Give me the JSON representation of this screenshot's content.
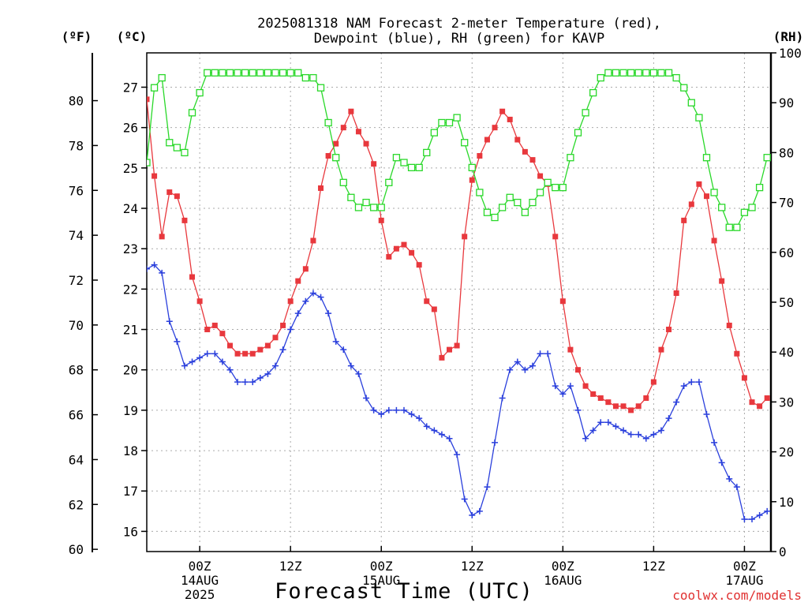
{
  "chart_data": {
    "type": "line",
    "title": [
      "2025081318 NAM Forecast 2-meter Temperature (red),",
      "Dewpoint (blue), RH (green) for KAVP"
    ],
    "xlabel": "Forecast Time (UTC)",
    "credit": "coolwx.com/models",
    "unit_labels": {
      "fahrenheit": "(ºF)",
      "celsius": "(ºC)",
      "rh": "(RH)"
    },
    "x_unit": "forecast hour from 2025081318",
    "xlim": [
      -1,
      81.5
    ],
    "ylim_c": [
      15.5,
      27.85
    ],
    "ylim_rh": [
      0,
      100
    ],
    "grid": true,
    "x_ticks": [
      {
        "x": 6,
        "lines": [
          "00Z",
          "14AUG",
          "2025"
        ]
      },
      {
        "x": 18,
        "lines": [
          "12Z"
        ]
      },
      {
        "x": 30,
        "lines": [
          "00Z",
          "15AUG"
        ]
      },
      {
        "x": 42,
        "lines": [
          "12Z"
        ]
      },
      {
        "x": 54,
        "lines": [
          "00Z",
          "16AUG"
        ]
      },
      {
        "x": 66,
        "lines": [
          "12Z"
        ]
      },
      {
        "x": 78,
        "lines": [
          "00Z",
          "17AUG"
        ]
      }
    ],
    "y_ticks_c": [
      "16",
      "17",
      "18",
      "19",
      "20",
      "21",
      "22",
      "23",
      "24",
      "25",
      "26",
      "27"
    ],
    "y_ticks_f": [
      "60",
      "62",
      "64",
      "66",
      "68",
      "70",
      "72",
      "74",
      "76",
      "78",
      "80"
    ],
    "y_ticks_rh": [
      "0",
      "10",
      "20",
      "30",
      "40",
      "50",
      "60",
      "70",
      "80",
      "90",
      "100"
    ],
    "series": [
      {
        "name": "Temperature",
        "color": "#e8383d",
        "marker": "filled-square",
        "axis": "celsius",
        "x": [
          -1,
          0,
          1,
          2,
          3,
          4,
          5,
          6,
          7,
          8,
          9,
          10,
          11,
          12,
          13,
          14,
          15,
          16,
          17,
          18,
          19,
          20,
          21,
          22,
          23,
          24,
          25,
          26,
          27,
          28,
          29,
          30,
          31,
          32,
          33,
          34,
          35,
          36,
          37,
          38,
          39,
          40,
          41,
          42,
          43,
          44,
          45,
          46,
          47,
          48,
          49,
          50,
          51,
          52,
          53,
          54,
          55,
          56,
          57,
          58,
          59,
          60,
          61,
          62,
          63,
          64,
          65,
          66,
          67,
          68,
          69,
          70,
          71,
          72,
          73,
          74,
          75,
          76,
          77,
          78,
          79,
          80,
          81
        ],
        "values": [
          26.7,
          24.8,
          23.3,
          24.4,
          24.3,
          23.7,
          22.3,
          21.7,
          21.0,
          21.1,
          20.9,
          20.6,
          20.4,
          20.4,
          20.4,
          20.5,
          20.6,
          20.8,
          21.1,
          21.7,
          22.2,
          22.5,
          23.2,
          24.5,
          25.3,
          25.6,
          26.0,
          26.4,
          25.9,
          25.6,
          25.1,
          23.7,
          22.8,
          23.0,
          23.1,
          22.9,
          22.6,
          21.7,
          21.5,
          20.3,
          20.5,
          20.6,
          23.3,
          24.7,
          25.3,
          25.7,
          26.0,
          26.4,
          26.2,
          25.7,
          25.4,
          25.2,
          24.8,
          24.6,
          23.3,
          21.7,
          20.5,
          20.0,
          19.6,
          19.4,
          19.3,
          19.2,
          19.1,
          19.1,
          19.0,
          19.1,
          19.3,
          19.7,
          20.5,
          21.0,
          21.9,
          23.7,
          24.1,
          24.6,
          24.3,
          23.2,
          22.2,
          21.1,
          20.4,
          19.8,
          19.2,
          19.1,
          19.3
        ]
      },
      {
        "name": "Dewpoint",
        "color": "#2a3fdc",
        "marker": "plus",
        "axis": "celsius",
        "x": [
          -1,
          0,
          1,
          2,
          3,
          4,
          5,
          6,
          7,
          8,
          9,
          10,
          11,
          12,
          13,
          14,
          15,
          16,
          17,
          18,
          19,
          20,
          21,
          22,
          23,
          24,
          25,
          26,
          27,
          28,
          29,
          30,
          31,
          32,
          33,
          34,
          35,
          36,
          37,
          38,
          39,
          40,
          41,
          42,
          43,
          44,
          45,
          46,
          47,
          48,
          49,
          50,
          51,
          52,
          53,
          54,
          55,
          56,
          57,
          58,
          59,
          60,
          61,
          62,
          63,
          64,
          65,
          66,
          67,
          68,
          69,
          70,
          71,
          72,
          73,
          74,
          75,
          76,
          77,
          78,
          79,
          80,
          81
        ],
        "values": [
          22.5,
          22.6,
          22.4,
          21.2,
          20.7,
          20.1,
          20.2,
          20.3,
          20.4,
          20.4,
          20.2,
          20.0,
          19.7,
          19.7,
          19.7,
          19.8,
          19.9,
          20.1,
          20.5,
          21.0,
          21.4,
          21.7,
          21.9,
          21.8,
          21.4,
          20.7,
          20.5,
          20.1,
          19.9,
          19.3,
          19.0,
          18.9,
          19.0,
          19.0,
          19.0,
          18.9,
          18.8,
          18.6,
          18.5,
          18.4,
          18.3,
          17.9,
          16.8,
          16.4,
          16.5,
          17.1,
          18.2,
          19.3,
          20.0,
          20.2,
          20.0,
          20.1,
          20.4,
          20.4,
          19.6,
          19.4,
          19.6,
          19.0,
          18.3,
          18.5,
          18.7,
          18.7,
          18.6,
          18.5,
          18.4,
          18.4,
          18.3,
          18.4,
          18.5,
          18.8,
          19.2,
          19.6,
          19.7,
          19.7,
          18.9,
          18.2,
          17.7,
          17.3,
          17.1,
          16.3,
          16.3,
          16.4,
          16.5
        ]
      },
      {
        "name": "RH",
        "color": "#29d829",
        "marker": "open-square",
        "axis": "rh",
        "x": [
          -1,
          0,
          1,
          2,
          3,
          4,
          5,
          6,
          7,
          8,
          9,
          10,
          11,
          12,
          13,
          14,
          15,
          16,
          17,
          18,
          19,
          20,
          21,
          22,
          23,
          24,
          25,
          26,
          27,
          28,
          29,
          30,
          31,
          32,
          33,
          34,
          35,
          36,
          37,
          38,
          39,
          40,
          41,
          42,
          43,
          44,
          45,
          46,
          47,
          48,
          49,
          50,
          51,
          52,
          53,
          54,
          55,
          56,
          57,
          58,
          59,
          60,
          61,
          62,
          63,
          64,
          65,
          66,
          67,
          68,
          69,
          70,
          71,
          72,
          73,
          74,
          75,
          76,
          77,
          78,
          79,
          80,
          81
        ],
        "values": [
          78,
          93,
          95,
          82,
          81,
          80,
          88,
          92,
          96,
          96,
          96,
          96,
          96,
          96,
          96,
          96,
          96,
          96,
          96,
          96,
          96,
          95,
          95,
          93,
          86,
          79,
          74,
          71,
          69,
          70,
          69,
          69,
          74,
          79,
          78,
          77,
          77,
          80,
          84,
          86,
          86,
          87,
          82,
          77,
          72,
          68,
          67,
          69,
          71,
          70,
          68,
          70,
          72,
          74,
          73,
          73,
          79,
          84,
          88,
          92,
          95,
          96,
          96,
          96,
          96,
          96,
          96,
          96,
          96,
          96,
          95,
          93,
          90,
          87,
          79,
          72,
          69,
          65,
          65,
          68,
          69,
          73,
          79
        ]
      }
    ]
  }
}
